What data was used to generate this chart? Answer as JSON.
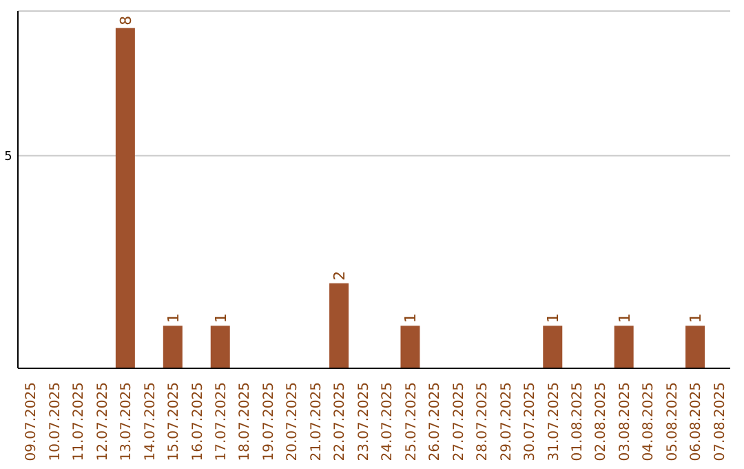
{
  "chart_data": {
    "type": "bar",
    "categories": [
      "09.07.2025",
      "10.07.2025",
      "11.07.2025",
      "12.07.2025",
      "13.07.2025",
      "14.07.2025",
      "15.07.2025",
      "16.07.2025",
      "17.07.2025",
      "18.07.2025",
      "19.07.2025",
      "20.07.2025",
      "21.07.2025",
      "22.07.2025",
      "23.07.2025",
      "24.07.2025",
      "25.07.2025",
      "26.07.2025",
      "27.07.2025",
      "28.07.2025",
      "29.07.2025",
      "30.07.2025",
      "31.07.2025",
      "01.08.2025",
      "02.08.2025",
      "03.08.2025",
      "04.08.2025",
      "05.08.2025",
      "06.08.2025",
      "07.08.2025"
    ],
    "values": [
      0,
      0,
      0,
      0,
      8,
      0,
      1,
      0,
      1,
      0,
      0,
      0,
      0,
      2,
      0,
      0,
      1,
      0,
      0,
      0,
      0,
      0,
      1,
      0,
      0,
      1,
      0,
      0,
      1,
      0
    ],
    "value_labels": [
      null,
      null,
      null,
      null,
      "8",
      null,
      "1",
      null,
      "1",
      null,
      null,
      null,
      null,
      "2",
      null,
      null,
      "1",
      null,
      null,
      null,
      null,
      null,
      "1",
      null,
      null,
      "1",
      null,
      null,
      "1",
      null
    ],
    "color": "#a0522d",
    "ylim": [
      0,
      8.4
    ],
    "yticks": [
      5
    ],
    "grid": "y"
  }
}
